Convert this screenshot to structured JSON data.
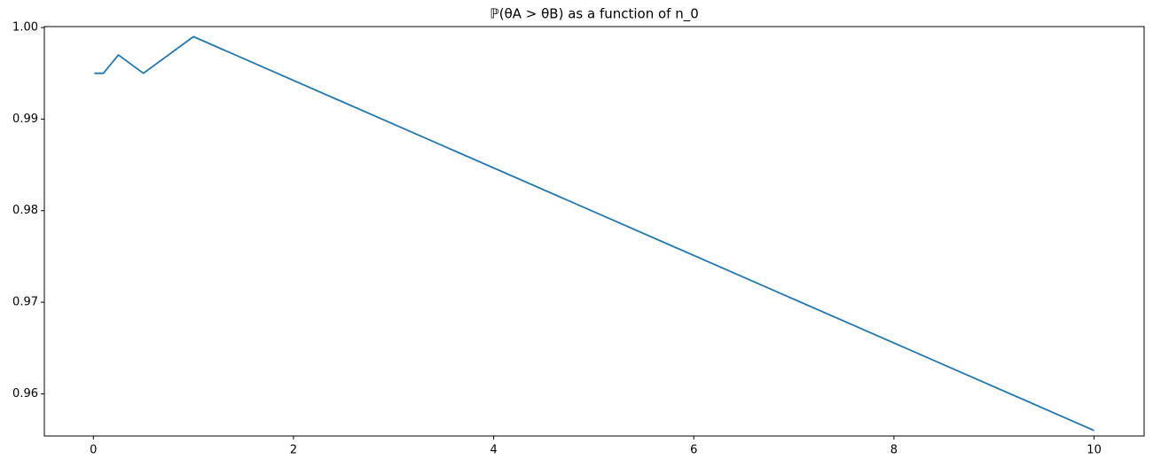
{
  "chart_data": {
    "type": "line",
    "title": "ℙ(θA > θB) as a function of n_0",
    "x": [
      0.01,
      0.1,
      0.25,
      0.5,
      1,
      10
    ],
    "series": [
      {
        "color": "#1f77b4",
        "values": [
          0.995,
          0.995,
          0.997,
          0.995,
          0.999,
          0.956
        ]
      }
    ],
    "xlim": [
      -0.49,
      10.5
    ],
    "xticks": [
      0,
      2,
      4,
      6,
      8,
      10
    ],
    "ylim": [
      0.9554,
      1.0001
    ],
    "yticks": [
      0.96,
      0.97,
      0.98,
      0.99,
      {
        "value": 1,
        "label": "1.00"
      }
    ],
    "grid": false
  }
}
